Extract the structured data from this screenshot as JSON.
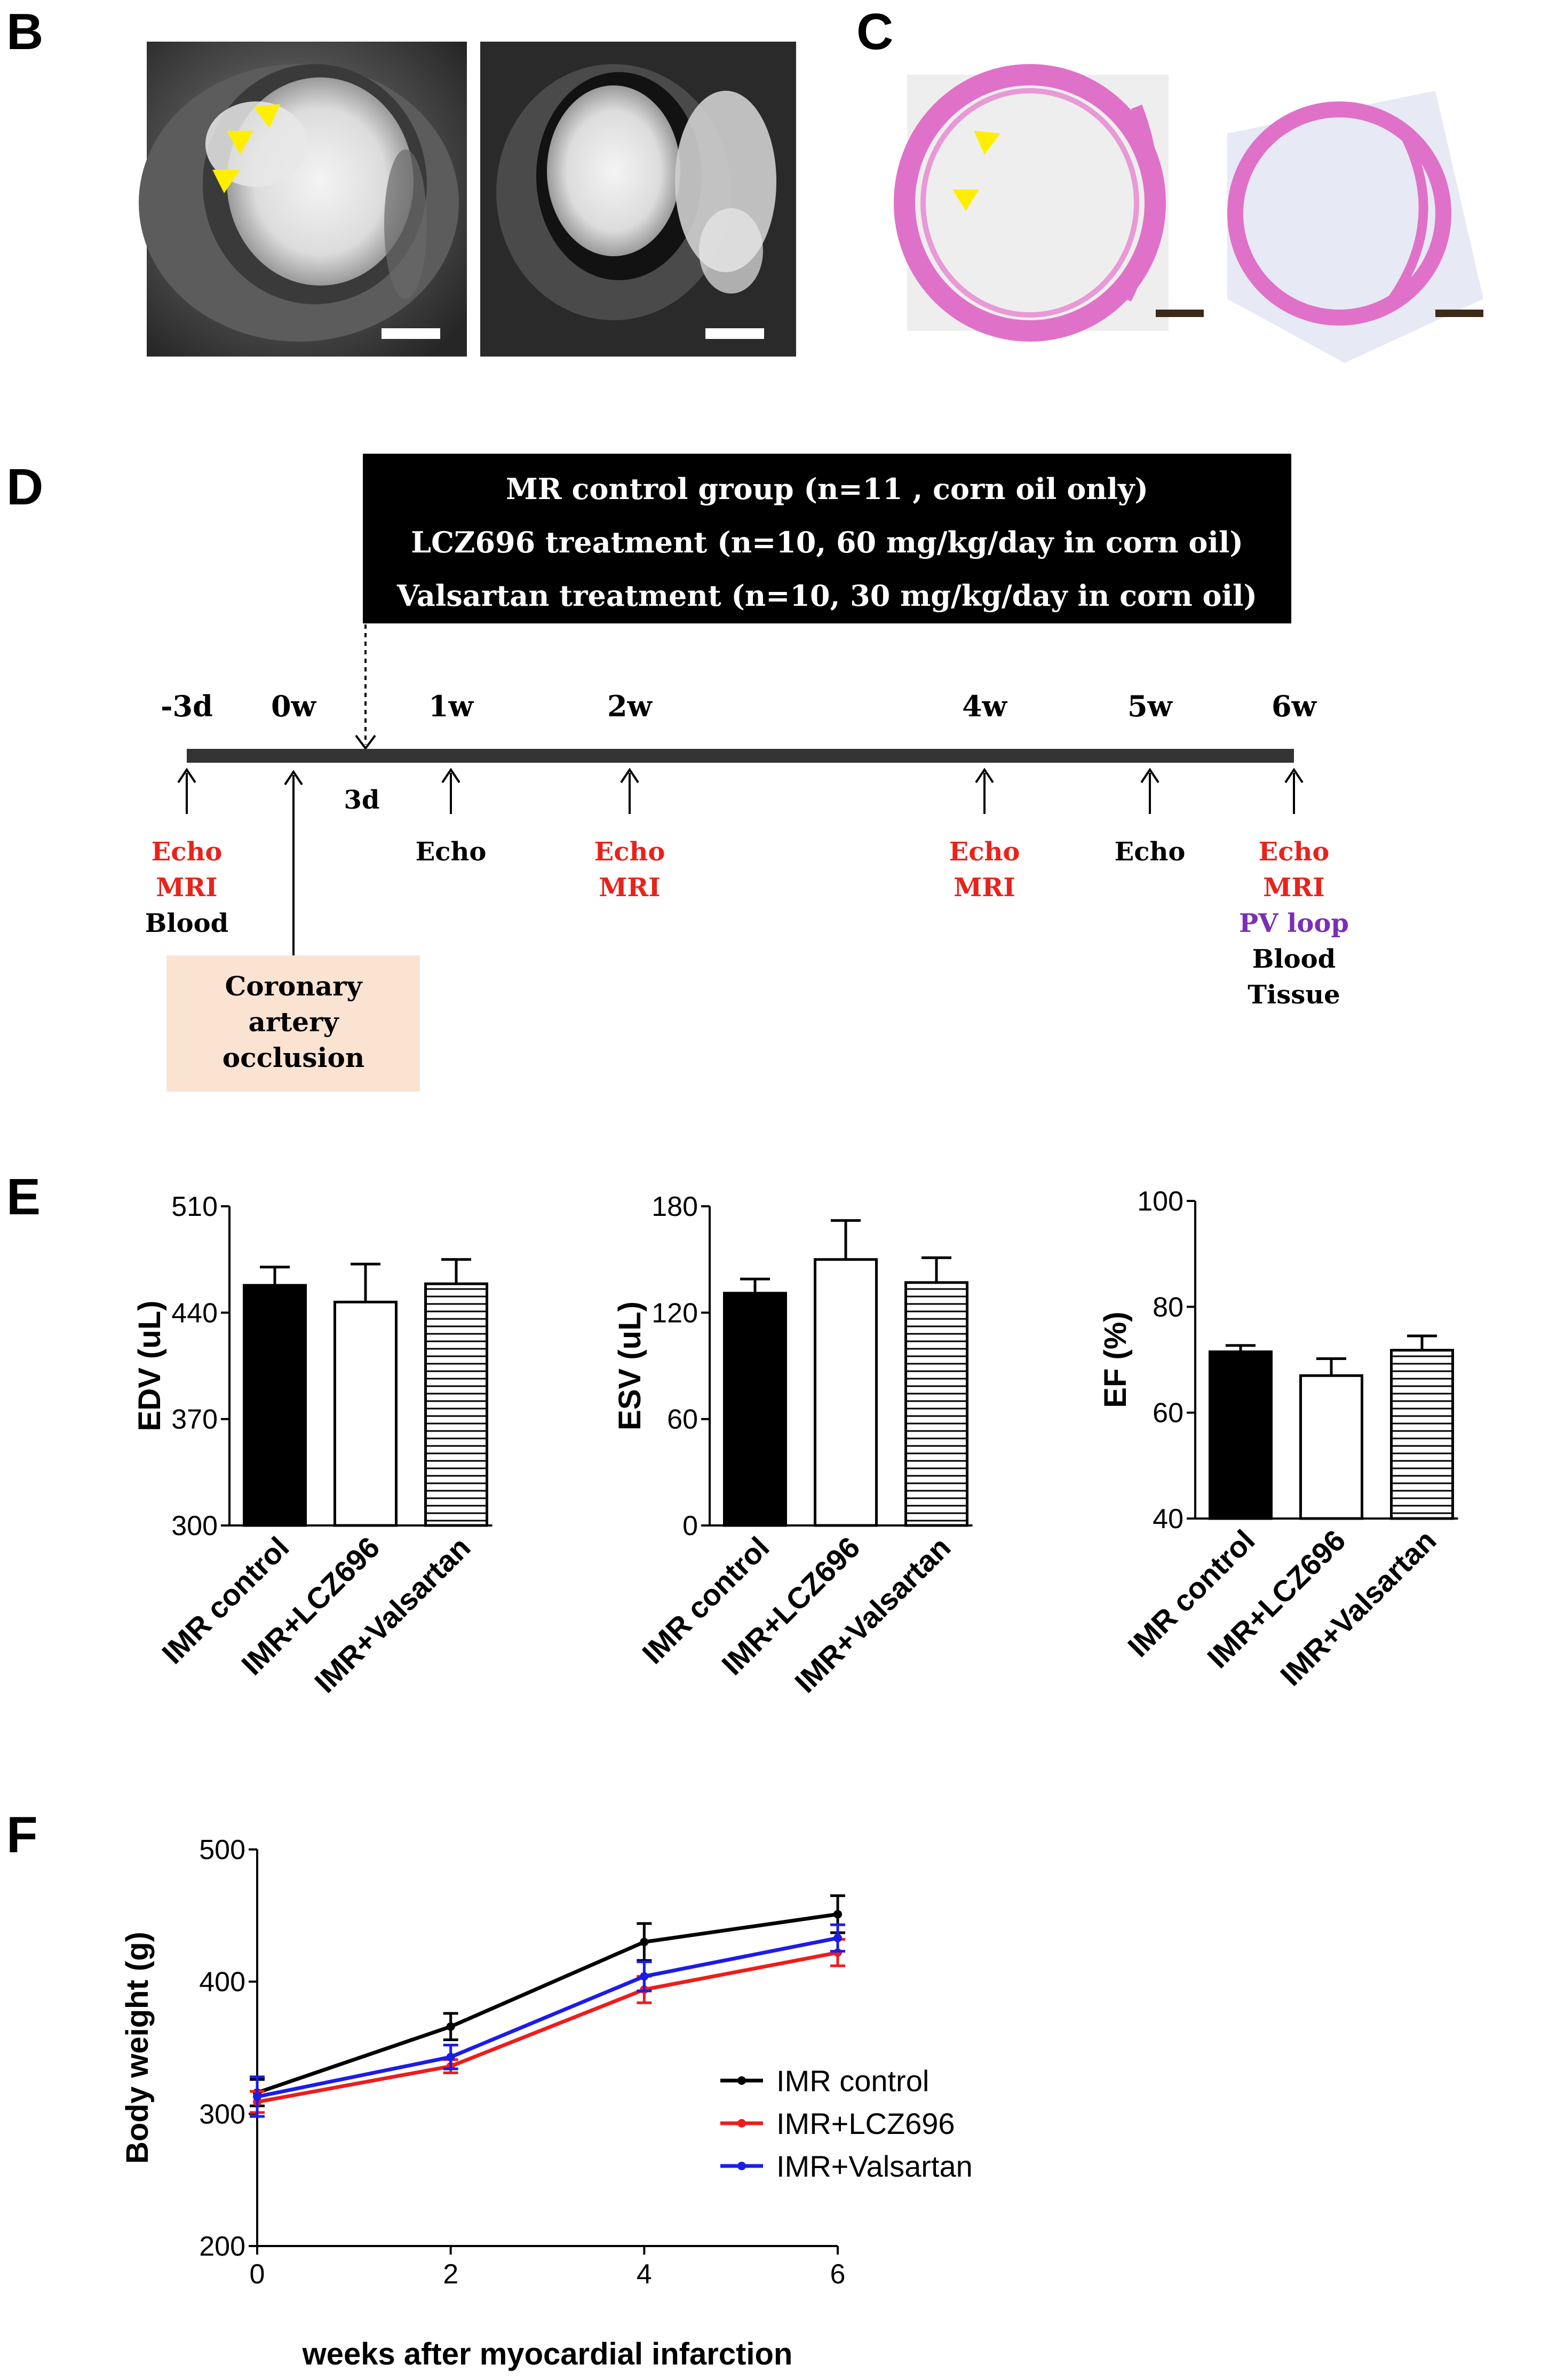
{
  "panels": {
    "B": {
      "letter": "B"
    },
    "C": {
      "letter": "C"
    },
    "D": {
      "letter": "D"
    },
    "E": {
      "letter": "E"
    },
    "F": {
      "letter": "F"
    }
  },
  "timeline": {
    "groups": [
      "MR control group (n=11 , corn oil only)",
      "LCZ696 treatment (n=10, 60 mg/kg/day in corn oil)",
      "Valsartan treatment (n=10, 30 mg/kg/day in corn oil)"
    ],
    "ticks": [
      {
        "label": "-3d",
        "events": [
          {
            "text": "Echo",
            "color": "#e8231c"
          },
          {
            "text": "MRI",
            "color": "#e8231c"
          },
          {
            "text": "Blood",
            "color": "#000000"
          }
        ]
      },
      {
        "label": "0w",
        "events": []
      },
      {
        "label": "1w",
        "events": [
          {
            "text": "Echo",
            "color": "#000000"
          }
        ]
      },
      {
        "label": "2w",
        "events": [
          {
            "text": "Echo",
            "color": "#e8231c"
          },
          {
            "text": "MRI",
            "color": "#e8231c"
          }
        ]
      },
      {
        "label": "4w",
        "events": [
          {
            "text": "Echo",
            "color": "#e8231c"
          },
          {
            "text": "MRI",
            "color": "#e8231c"
          }
        ]
      },
      {
        "label": "5w",
        "events": [
          {
            "text": "Echo",
            "color": "#000000"
          }
        ]
      },
      {
        "label": "6w",
        "events": [
          {
            "text": "Echo",
            "color": "#e8231c"
          },
          {
            "text": "MRI",
            "color": "#e8231c"
          },
          {
            "text": "PV loop",
            "color": "#7b2fb5"
          },
          {
            "text": "Blood",
            "color": "#000000"
          },
          {
            "text": "Tissue",
            "color": "#000000"
          }
        ]
      }
    ],
    "treatment_start_label": "3d",
    "occlusion_box": {
      "lines": [
        "Coronary",
        "artery",
        "occlusion"
      ],
      "fill": "#fbe3d2"
    }
  },
  "chart_data": [
    {
      "type": "bar",
      "panel": "E",
      "title": "",
      "categories": [
        "IMR control",
        "IMR+LCZ696",
        "IMR+Valsartan"
      ],
      "values": [
        458,
        447,
        459
      ],
      "errors": [
        12,
        25,
        16
      ],
      "ylabel": "EDV (uL)",
      "ylim": [
        300,
        510
      ],
      "yticks": [
        "300",
        "370",
        "440",
        "510"
      ],
      "fills": [
        "black",
        "white",
        "hatched"
      ]
    },
    {
      "type": "bar",
      "panel": "E",
      "title": "",
      "categories": [
        "IMR control",
        "IMR+LCZ696",
        "IMR+Valsartan"
      ],
      "values": [
        131,
        150,
        137
      ],
      "errors": [
        8,
        22,
        14
      ],
      "ylabel": "ESV (uL)",
      "ylim": [
        0,
        180
      ],
      "yticks": [
        "0",
        "60",
        "120",
        "180"
      ],
      "fills": [
        "black",
        "white",
        "hatched"
      ]
    },
    {
      "type": "bar",
      "panel": "E",
      "title": "",
      "categories": [
        "IMR control",
        "IMR+LCZ696",
        "IMR+Valsartan"
      ],
      "values": [
        71.5,
        67,
        71.8
      ],
      "errors": [
        1.2,
        3.2,
        2.7
      ],
      "ylabel": "EF (%)",
      "ylim": [
        40,
        100
      ],
      "yticks": [
        "40",
        "60",
        "80",
        "100"
      ],
      "fills": [
        "black",
        "white",
        "hatched"
      ]
    },
    {
      "type": "line",
      "panel": "F",
      "title": "",
      "x": [
        0,
        2,
        4,
        6
      ],
      "xticks": [
        "0",
        "2",
        "4",
        "6"
      ],
      "xlabel": "weeks after myocardial infarction",
      "ylabel": "Body weight (g)",
      "ylim": [
        200,
        500
      ],
      "yticks": [
        "200",
        "300",
        "400",
        "500"
      ],
      "legend_position": "lower-right",
      "series": [
        {
          "name": "IMR control",
          "color": "#000000",
          "values": [
            316,
            366,
            430,
            451
          ],
          "errors": [
            10,
            10,
            14,
            14
          ]
        },
        {
          "name": "IMR+LCZ696",
          "color": "#ee1c1c",
          "values": [
            309,
            336,
            394,
            422
          ],
          "errors": [
            8,
            5,
            10,
            10
          ]
        },
        {
          "name": "IMR+Valsartan",
          "color": "#1c1ce8",
          "values": [
            313,
            343,
            404,
            433
          ],
          "errors": [
            15,
            9,
            11,
            10
          ]
        }
      ]
    }
  ]
}
